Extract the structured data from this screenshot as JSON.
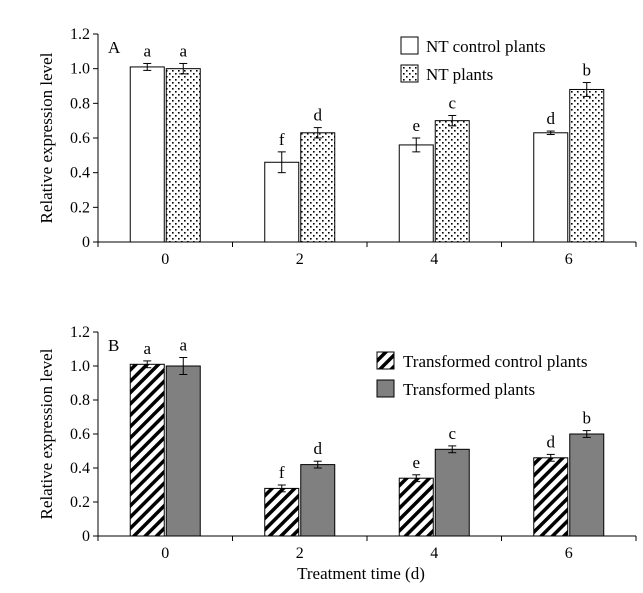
{
  "chart_data": [
    {
      "type": "bar",
      "panel_label": "A",
      "categories": [
        "0",
        "2",
        "4",
        "6"
      ],
      "series": [
        {
          "name": "NT control plants",
          "values": [
            1.01,
            0.46,
            0.56,
            0.63
          ],
          "errors": [
            0.02,
            0.06,
            0.04,
            0.01
          ],
          "letters": [
            "a",
            "f",
            "e",
            "d"
          ],
          "fill": "white"
        },
        {
          "name": "NT plants",
          "values": [
            1.0,
            0.63,
            0.7,
            0.88
          ],
          "errors": [
            0.03,
            0.03,
            0.03,
            0.04
          ],
          "letters": [
            "a",
            "d",
            "c",
            "b"
          ],
          "fill": "dots"
        }
      ],
      "ylabel": "Relative expression level",
      "xlabel": "",
      "ylim": [
        0,
        1.2
      ],
      "yticks": [
        "0",
        "0.2",
        "0.4",
        "0.6",
        "0.8",
        "1.0",
        "1.2"
      ],
      "legend_position": "top-right",
      "grid": false
    },
    {
      "type": "bar",
      "panel_label": "B",
      "categories": [
        "0",
        "2",
        "4",
        "6"
      ],
      "series": [
        {
          "name": "Transformed control plants",
          "values": [
            1.01,
            0.28,
            0.34,
            0.46
          ],
          "errors": [
            0.02,
            0.02,
            0.02,
            0.02
          ],
          "letters": [
            "a",
            "f",
            "e",
            "d"
          ],
          "fill": "hatch"
        },
        {
          "name": "Transformed plants",
          "values": [
            1.0,
            0.42,
            0.51,
            0.6
          ],
          "errors": [
            0.05,
            0.02,
            0.02,
            0.02
          ],
          "letters": [
            "a",
            "d",
            "c",
            "b"
          ],
          "fill": "#808080"
        }
      ],
      "ylabel": "Relative expression level",
      "xlabel": "Treatment time (d)",
      "ylim": [
        0,
        1.2
      ],
      "yticks": [
        "0",
        "0.2",
        "0.4",
        "0.6",
        "0.8",
        "1.0",
        "1.2"
      ],
      "legend_position": "top-right",
      "grid": false
    }
  ]
}
